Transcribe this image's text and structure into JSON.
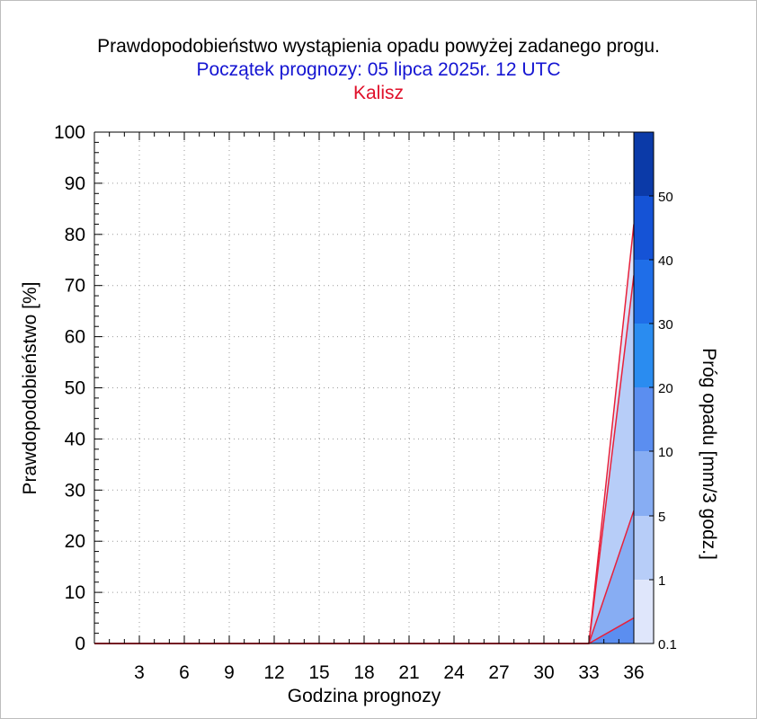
{
  "header": {
    "title": "Prawdopodobieństwo wystąpienia opadu powyżej zadanego progu.",
    "subtitle": "Początek prognozy: 05 lipca 2025r. 12 UTC",
    "location": "Kalisz"
  },
  "colors": {
    "title": "#000000",
    "subtitle": "#1414d2",
    "location": "#e0102a",
    "lines": "#e8203a",
    "band_0_1": "#dfe6fb",
    "band_1": "#b7cdf8",
    "band_5": "#87adf3",
    "band_10": "#5b8ef0",
    "band_20": "#2a8cf0",
    "band_30": "#1f6ee8",
    "band_40": "#1553d6",
    "band_50": "#0b3aa8"
  },
  "chart_data": {
    "type": "area",
    "xlabel": "Godzina prognozy",
    "ylabel": "Prawdopodobieństwo [%]",
    "xlim": [
      0,
      36
    ],
    "ylim": [
      0,
      100
    ],
    "x_ticks": [
      3,
      6,
      9,
      12,
      15,
      18,
      21,
      24,
      27,
      30,
      33,
      36
    ],
    "y_ticks": [
      0,
      10,
      20,
      30,
      40,
      50,
      60,
      70,
      80,
      90,
      100
    ],
    "grid": true,
    "x": [
      0,
      3,
      6,
      9,
      12,
      15,
      18,
      21,
      24,
      27,
      30,
      33,
      36
    ],
    "series": [
      {
        "name": "0.1",
        "values": [
          0,
          0,
          0,
          0,
          0,
          0,
          0,
          0,
          0,
          0,
          0,
          0,
          82
        ]
      },
      {
        "name": "1",
        "values": [
          0,
          0,
          0,
          0,
          0,
          0,
          0,
          0,
          0,
          0,
          0,
          0,
          72
        ]
      },
      {
        "name": "5",
        "values": [
          0,
          0,
          0,
          0,
          0,
          0,
          0,
          0,
          0,
          0,
          0,
          0,
          26
        ]
      },
      {
        "name": "10",
        "values": [
          0,
          0,
          0,
          0,
          0,
          0,
          0,
          0,
          0,
          0,
          0,
          0,
          5
        ]
      }
    ],
    "colorbar": {
      "label": "Próg opadu [mm/3 godz.]",
      "tick_labels": [
        "0.1",
        "1",
        "5",
        "10",
        "20",
        "30",
        "40",
        "50"
      ]
    }
  }
}
